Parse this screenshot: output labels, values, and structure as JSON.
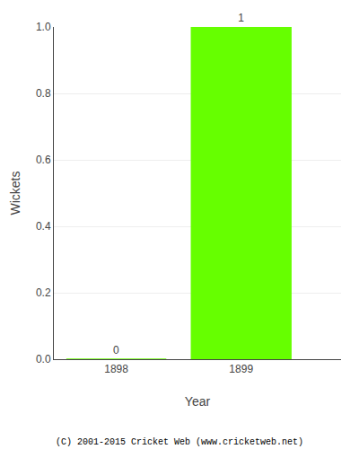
{
  "chart_data": {
    "type": "bar",
    "x": [
      1898,
      1899
    ],
    "values": [
      0,
      1
    ],
    "color": "#66ff00",
    "xlabel": "Year",
    "ylabel": "Wickets",
    "xlim": [
      1897.5,
      1899.8
    ],
    "xticks": [
      1898,
      1899
    ],
    "ylim": [
      0,
      1
    ],
    "yticks": [
      {
        "value": 0,
        "label": "0.0"
      },
      0.2,
      0.4,
      0.6,
      0.8,
      {
        "value": 1,
        "label": "1.0"
      }
    ],
    "grid": true,
    "data_labels": true,
    "annotations": [
      "(C) 2001-2015 Cricket Web (www.cricketweb.net)"
    ]
  }
}
